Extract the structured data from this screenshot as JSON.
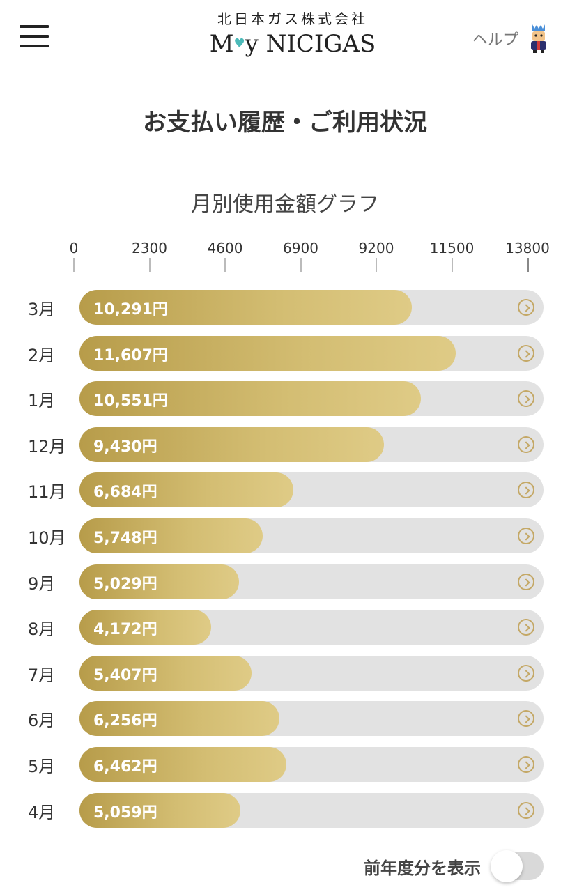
{
  "header": {
    "company": "北日本ガス株式会社",
    "brand_prefix": "M",
    "brand_heart": "♥",
    "brand_suffix": "y NICIGAS",
    "help_label": "ヘルプ",
    "menu_icon": "hamburger-menu-icon",
    "mascot_icon": "mascot-icon"
  },
  "page_title": "お支払い履歴・ご利用状況",
  "graph_title": "月別使用金額グラフ",
  "colors": {
    "bar_gold_start": "#b79c4a",
    "bar_gold_end": "#dfcb86",
    "track_gray": "#e2e2e2",
    "chevron_gold": "#c4a866"
  },
  "chart_data": {
    "type": "bar",
    "orientation": "horizontal",
    "axis_ticks": [
      "0",
      "2300",
      "4600",
      "6900",
      "9200",
      "11500",
      "13800"
    ],
    "xlim": [
      0,
      13800
    ],
    "categories": [
      "3月",
      "2月",
      "1月",
      "12月",
      "11月",
      "10月",
      "9月",
      "8月",
      "7月",
      "6月",
      "5月",
      "4月"
    ],
    "values": [
      10291,
      11607,
      10551,
      9430,
      6684,
      5748,
      5029,
      4172,
      5407,
      6256,
      6462,
      5059
    ],
    "value_labels": [
      "10,291円",
      "11,607円",
      "10,551円",
      "9,430円",
      "6,684円",
      "5,748円",
      "5,029円",
      "4,172円",
      "5,407円",
      "6,256円",
      "6,462円",
      "5,059円"
    ]
  },
  "toggle": {
    "label": "前年度分を表示",
    "on": false
  }
}
